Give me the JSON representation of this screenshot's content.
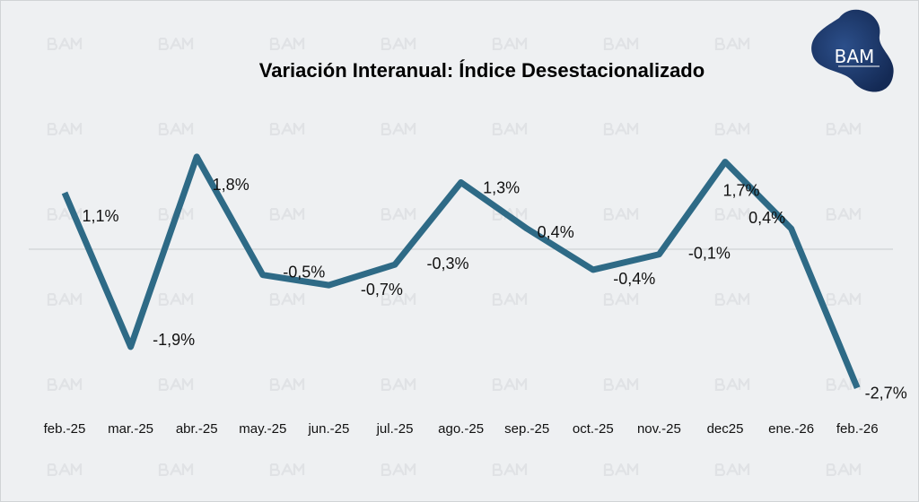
{
  "chart_data": {
    "type": "line",
    "title": "Variación Interanual: Índice Desestacionalizado",
    "categories": [
      "feb.-25",
      "mar.-25",
      "abr.-25",
      "may.-25",
      "jun.-25",
      "jul.-25",
      "ago.-25",
      "sep.-25",
      "oct.-25",
      "nov.-25",
      "dec25",
      "ene.-26",
      "feb.-26"
    ],
    "values": [
      1.1,
      -1.9,
      1.8,
      -0.5,
      -0.7,
      -0.3,
      1.3,
      0.4,
      -0.4,
      -0.1,
      1.7,
      0.4,
      -2.7
    ],
    "data_labels": [
      "1,1%",
      "-1,9%",
      "1,8%",
      "-0,5%",
      "-0,7%",
      "-0,3%",
      "1,3%",
      "0,4%",
      "-0,4%",
      "-0,1%",
      "1,7%",
      "0,4%",
      "-2,7%"
    ],
    "xlabel": "",
    "ylabel": "",
    "ylim": [
      -3,
      3
    ],
    "zero_line": true,
    "grid": false,
    "line_color": "#2e6a86"
  },
  "logo": {
    "text": "BAM",
    "color": "#1f3f74"
  },
  "watermark": "BAM"
}
